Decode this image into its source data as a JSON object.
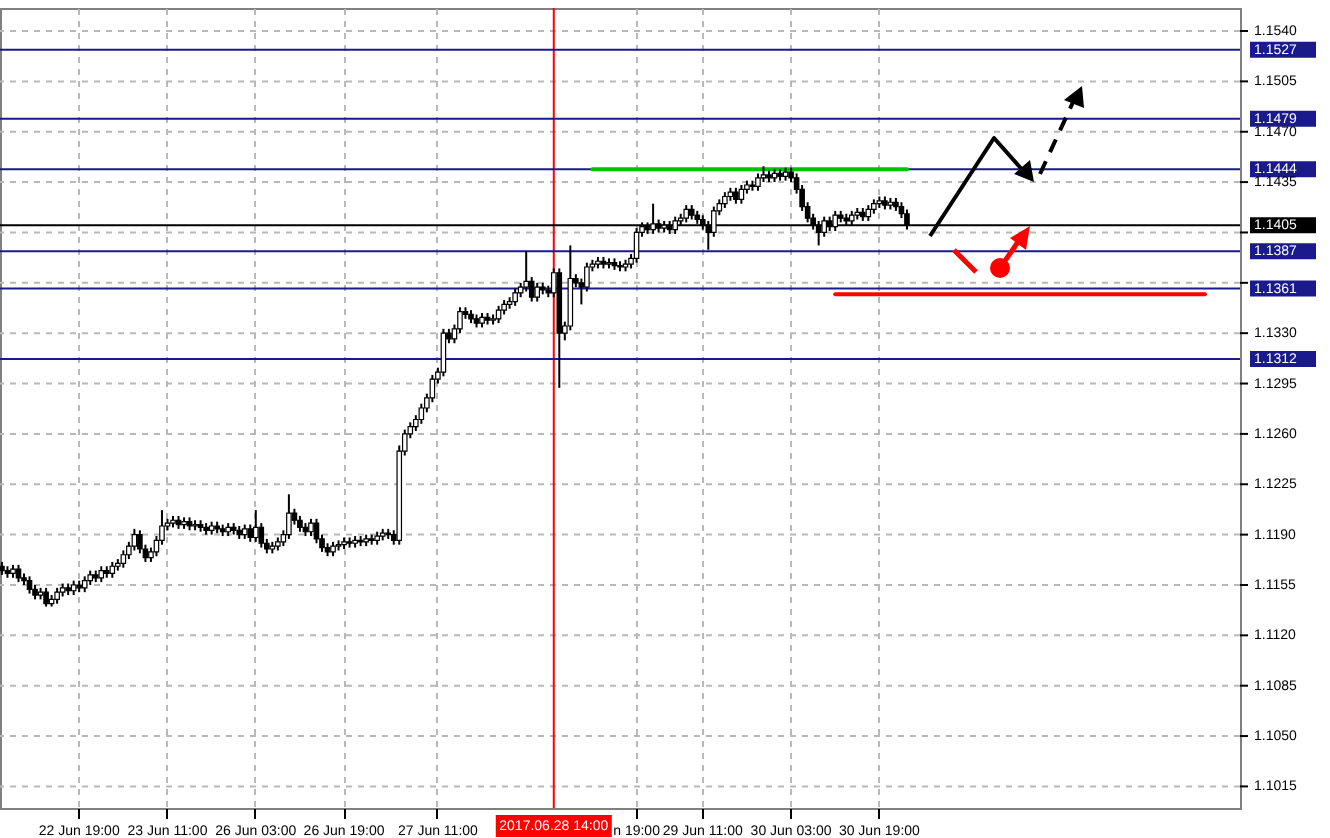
{
  "chart_data": {
    "type": "candlestick",
    "categories": [
      null,
      null,
      null,
      null,
      null,
      null,
      null,
      null,
      null,
      null,
      null,
      null,
      null,
      null,
      "22 Jun 19:00",
      null,
      null,
      null,
      null,
      null,
      null,
      null,
      null,
      null,
      null,
      null,
      null,
      null,
      null,
      null,
      "23 Jun 11:00",
      null,
      null,
      null,
      null,
      null,
      null,
      null,
      null,
      null,
      null,
      null,
      null,
      null,
      null,
      null,
      "26 Jun 03:00",
      null,
      null,
      null,
      null,
      null,
      null,
      null,
      null,
      null,
      null,
      null,
      null,
      null,
      null,
      null,
      "26 Jun 19:00",
      null,
      null,
      null,
      null,
      null,
      null,
      null,
      null,
      null,
      null,
      null,
      null,
      null,
      null,
      null,
      null,
      "27 Jun 11:00",
      null,
      null,
      null,
      null,
      null,
      null,
      null,
      null,
      null,
      null,
      null,
      null,
      null,
      null,
      null,
      null,
      null,
      null,
      null,
      null,
      "2017.06.28 14:00",
      null,
      null,
      null,
      null,
      null,
      null,
      null,
      null,
      null,
      null,
      null,
      null,
      null,
      null,
      "n 19:00",
      null,
      null,
      null,
      null,
      null,
      null,
      null,
      null,
      null,
      null,
      null,
      "29 Jun 11:00",
      null,
      null,
      null,
      null,
      null,
      null,
      null,
      null,
      null,
      null,
      null,
      null,
      null,
      null,
      null,
      "30 Jun 03:00",
      null,
      null,
      null,
      null,
      null,
      null,
      null,
      null,
      null,
      null,
      null,
      null,
      null,
      null,
      null,
      "30 Jun 19:00",
      null,
      null,
      null,
      null,
      null,
      null,
      null,
      null,
      null,
      null,
      null,
      null,
      null,
      null,
      null,
      null,
      null,
      null,
      null,
      null,
      null,
      null,
      null,
      null,
      null,
      null,
      null,
      null,
      null,
      null,
      null,
      null,
      null,
      null,
      null,
      null,
      null,
      null,
      null,
      null,
      null,
      null,
      null,
      null,
      null,
      null,
      null,
      null,
      null,
      null,
      null,
      null,
      null,
      null,
      null,
      null,
      null,
      null,
      null,
      null,
      null,
      null,
      null,
      null,
      null
    ],
    "ohlc": [
      [
        1.1168,
        1.1171,
        1.1162,
        1.1165
      ],
      [
        1.1165,
        1.1168,
        1.116,
        1.1163
      ],
      [
        1.1163,
        1.1169,
        1.116,
        1.1166
      ],
      [
        1.1166,
        1.1169,
        1.1157,
        1.116
      ],
      [
        1.116,
        1.1163,
        1.1155,
        1.1158
      ],
      [
        1.1158,
        1.1161,
        1.1149,
        1.1152
      ],
      [
        1.1152,
        1.1155,
        1.1145,
        1.1148
      ],
      [
        1.1148,
        1.1153,
        1.1145,
        1.115
      ],
      [
        1.115,
        1.1153,
        1.114,
        1.1142
      ],
      [
        1.1142,
        1.1148,
        1.114,
        1.1145
      ],
      [
        1.1145,
        1.1153,
        1.1142,
        1.115
      ],
      [
        1.115,
        1.1156,
        1.1147,
        1.1153
      ],
      [
        1.1153,
        1.1156,
        1.1148,
        1.1151
      ],
      [
        1.1151,
        1.1158,
        1.1148,
        1.1155
      ],
      [
        1.1155,
        1.1158,
        1.115,
        1.1153
      ],
      [
        1.1153,
        1.1161,
        1.115,
        1.1158
      ],
      [
        1.1158,
        1.1165,
        1.1155,
        1.1162
      ],
      [
        1.1162,
        1.1165,
        1.1157,
        1.116
      ],
      [
        1.116,
        1.1168,
        1.1157,
        1.1165
      ],
      [
        1.1165,
        1.1168,
        1.116,
        1.1163
      ],
      [
        1.1163,
        1.1171,
        1.116,
        1.1168
      ],
      [
        1.1168,
        1.1173,
        1.1165,
        1.117
      ],
      [
        1.117,
        1.1179,
        1.1167,
        1.1176
      ],
      [
        1.1176,
        1.1185,
        1.1173,
        1.1182
      ],
      [
        1.1182,
        1.1194,
        1.1179,
        1.119
      ],
      [
        1.119,
        1.1193,
        1.1177,
        1.118
      ],
      [
        1.118,
        1.1183,
        1.1171,
        1.1174
      ],
      [
        1.1174,
        1.1181,
        1.1171,
        1.1178
      ],
      [
        1.1178,
        1.1189,
        1.1175,
        1.1186
      ],
      [
        1.1186,
        1.1207,
        1.1183,
        1.1196
      ],
      [
        1.1196,
        1.1201,
        1.1193,
        1.1198
      ],
      [
        1.1198,
        1.1203,
        1.1195,
        1.12
      ],
      [
        1.12,
        1.1203,
        1.1194,
        1.1197
      ],
      [
        1.1197,
        1.1202,
        1.1194,
        1.1199
      ],
      [
        1.1199,
        1.1202,
        1.1193,
        1.1196
      ],
      [
        1.1196,
        1.12,
        1.1193,
        1.1197
      ],
      [
        1.1197,
        1.12,
        1.1192,
        1.1195
      ],
      [
        1.1195,
        1.1198,
        1.119,
        1.1193
      ],
      [
        1.1193,
        1.1199,
        1.119,
        1.1196
      ],
      [
        1.1196,
        1.1199,
        1.1191,
        1.1194
      ],
      [
        1.1194,
        1.1197,
        1.1189,
        1.1192
      ],
      [
        1.1192,
        1.1198,
        1.1189,
        1.1195
      ],
      [
        1.1195,
        1.1198,
        1.119,
        1.1193
      ],
      [
        1.1193,
        1.1196,
        1.1187,
        1.119
      ],
      [
        1.119,
        1.1197,
        1.1187,
        1.1194
      ],
      [
        1.1194,
        1.1197,
        1.1185,
        1.1188
      ],
      [
        1.1188,
        1.1207,
        1.1185,
        1.1195
      ],
      [
        1.1195,
        1.1198,
        1.1181,
        1.1184
      ],
      [
        1.1184,
        1.1187,
        1.1177,
        1.118
      ],
      [
        1.118,
        1.1185,
        1.1177,
        1.1182
      ],
      [
        1.1182,
        1.1188,
        1.1179,
        1.1185
      ],
      [
        1.1185,
        1.1193,
        1.1182,
        1.119
      ],
      [
        1.119,
        1.1218,
        1.1187,
        1.1205
      ],
      [
        1.1205,
        1.1208,
        1.1197,
        1.12
      ],
      [
        1.12,
        1.1203,
        1.1192,
        1.1195
      ],
      [
        1.1195,
        1.1198,
        1.1189,
        1.1192
      ],
      [
        1.1192,
        1.1201,
        1.1189,
        1.1198
      ],
      [
        1.1198,
        1.1201,
        1.1184,
        1.1187
      ],
      [
        1.1187,
        1.119,
        1.1178,
        1.1181
      ],
      [
        1.1181,
        1.1184,
        1.1175,
        1.1178
      ],
      [
        1.1178,
        1.1185,
        1.1175,
        1.1182
      ],
      [
        1.1182,
        1.1186,
        1.1179,
        1.1183
      ],
      [
        1.1183,
        1.1188,
        1.118,
        1.1185
      ],
      [
        1.1185,
        1.1188,
        1.1181,
        1.1184
      ],
      [
        1.1184,
        1.1189,
        1.1181,
        1.1186
      ],
      [
        1.1186,
        1.1189,
        1.1182,
        1.1185
      ],
      [
        1.1185,
        1.119,
        1.1182,
        1.1187
      ],
      [
        1.1187,
        1.119,
        1.1183,
        1.1186
      ],
      [
        1.1186,
        1.1192,
        1.1183,
        1.1189
      ],
      [
        1.1189,
        1.1194,
        1.1186,
        1.1191
      ],
      [
        1.1191,
        1.1194,
        1.1187,
        1.119
      ],
      [
        1.119,
        1.1193,
        1.1183,
        1.1186
      ],
      [
        1.1186,
        1.1252,
        1.1183,
        1.1248
      ],
      [
        1.1248,
        1.1263,
        1.1245,
        1.126
      ],
      [
        1.126,
        1.1268,
        1.1257,
        1.1265
      ],
      [
        1.1265,
        1.1273,
        1.1262,
        1.127
      ],
      [
        1.127,
        1.1281,
        1.1267,
        1.1278
      ],
      [
        1.1278,
        1.1288,
        1.1275,
        1.1285
      ],
      [
        1.1285,
        1.1301,
        1.1282,
        1.1298
      ],
      [
        1.1298,
        1.1306,
        1.1295,
        1.1303
      ],
      [
        1.1303,
        1.1333,
        1.13,
        1.133
      ],
      [
        1.133,
        1.1333,
        1.1323,
        1.1326
      ],
      [
        1.1326,
        1.1336,
        1.1323,
        1.1333
      ],
      [
        1.1333,
        1.1348,
        1.133,
        1.1345
      ],
      [
        1.1345,
        1.1348,
        1.134,
        1.1343
      ],
      [
        1.1343,
        1.1346,
        1.1337,
        1.134
      ],
      [
        1.134,
        1.1343,
        1.1334,
        1.1337
      ],
      [
        1.1337,
        1.1344,
        1.1334,
        1.1341
      ],
      [
        1.1341,
        1.1344,
        1.1336,
        1.1339
      ],
      [
        1.1339,
        1.1343,
        1.1336,
        1.134
      ],
      [
        1.134,
        1.1349,
        1.1337,
        1.1346
      ],
      [
        1.1346,
        1.1353,
        1.1343,
        1.135
      ],
      [
        1.135,
        1.1355,
        1.1347,
        1.1352
      ],
      [
        1.1352,
        1.1361,
        1.1349,
        1.1358
      ],
      [
        1.1358,
        1.1365,
        1.1355,
        1.1362
      ],
      [
        1.1362,
        1.1387,
        1.1359,
        1.1366
      ],
      [
        1.1366,
        1.1369,
        1.1352,
        1.1355
      ],
      [
        1.1355,
        1.1365,
        1.1352,
        1.1362
      ],
      [
        1.1362,
        1.1365,
        1.1357,
        1.136
      ],
      [
        1.136,
        1.1363,
        1.1355,
        1.1358
      ],
      [
        1.1358,
        1.1375,
        1.1355,
        1.1372
      ],
      [
        1.1372,
        1.1375,
        1.1292,
        1.133
      ],
      [
        1.133,
        1.1338,
        1.1325,
        1.1335
      ],
      [
        1.1335,
        1.1391,
        1.1332,
        1.1368
      ],
      [
        1.1368,
        1.1371,
        1.1362,
        1.1365
      ],
      [
        1.1365,
        1.1368,
        1.135,
        1.1362
      ],
      [
        1.1362,
        1.1379,
        1.1359,
        1.1376
      ],
      [
        1.1376,
        1.1381,
        1.1373,
        1.1378
      ],
      [
        1.1378,
        1.1383,
        1.1375,
        1.138
      ],
      [
        1.138,
        1.1383,
        1.1375,
        1.1378
      ],
      [
        1.1378,
        1.1382,
        1.1375,
        1.1379
      ],
      [
        1.1379,
        1.1382,
        1.1374,
        1.1377
      ],
      [
        1.1377,
        1.138,
        1.1373,
        1.1376
      ],
      [
        1.1376,
        1.1381,
        1.1373,
        1.1378
      ],
      [
        1.1378,
        1.1385,
        1.1375,
        1.1382
      ],
      [
        1.1382,
        1.1403,
        1.1379,
        1.14
      ],
      [
        1.14,
        1.1407,
        1.1397,
        1.1404
      ],
      [
        1.1404,
        1.1407,
        1.1399,
        1.1402
      ],
      [
        1.1402,
        1.142,
        1.1399,
        1.1406
      ],
      [
        1.1406,
        1.1409,
        1.14,
        1.1403
      ],
      [
        1.1403,
        1.1408,
        1.14,
        1.1405
      ],
      [
        1.1405,
        1.1408,
        1.1399,
        1.1402
      ],
      [
        1.1402,
        1.1411,
        1.1399,
        1.1408
      ],
      [
        1.1408,
        1.1413,
        1.1405,
        1.141
      ],
      [
        1.141,
        1.1419,
        1.1407,
        1.1416
      ],
      [
        1.1416,
        1.1419,
        1.1409,
        1.1412
      ],
      [
        1.1412,
        1.1415,
        1.1406,
        1.1409
      ],
      [
        1.1409,
        1.1412,
        1.1402,
        1.1405
      ],
      [
        1.1405,
        1.1408,
        1.1388,
        1.14
      ],
      [
        1.14,
        1.1418,
        1.1397,
        1.1415
      ],
      [
        1.1415,
        1.1423,
        1.1412,
        1.142
      ],
      [
        1.142,
        1.1428,
        1.1417,
        1.1425
      ],
      [
        1.1425,
        1.1431,
        1.1422,
        1.1428
      ],
      [
        1.1428,
        1.1431,
        1.142,
        1.1423
      ],
      [
        1.1423,
        1.1433,
        1.142,
        1.143
      ],
      [
        1.143,
        1.1436,
        1.1427,
        1.1433
      ],
      [
        1.1433,
        1.1436,
        1.1429,
        1.1432
      ],
      [
        1.1432,
        1.1441,
        1.1429,
        1.1438
      ],
      [
        1.1438,
        1.1446,
        1.1435,
        1.144
      ],
      [
        1.144,
        1.1443,
        1.1435,
        1.1438
      ],
      [
        1.1438,
        1.1444,
        1.1435,
        1.1441
      ],
      [
        1.1441,
        1.1444,
        1.1436,
        1.1439
      ],
      [
        1.1439,
        1.1445,
        1.1436,
        1.1442
      ],
      [
        1.1442,
        1.1445,
        1.1435,
        1.1438
      ],
      [
        1.1438,
        1.1441,
        1.1427,
        1.143
      ],
      [
        1.143,
        1.1433,
        1.1415,
        1.1418
      ],
      [
        1.1418,
        1.1421,
        1.1407,
        1.141
      ],
      [
        1.141,
        1.1413,
        1.1402,
        1.1405
      ],
      [
        1.1405,
        1.1408,
        1.1391,
        1.14
      ],
      [
        1.14,
        1.1411,
        1.1397,
        1.1408
      ],
      [
        1.1408,
        1.1411,
        1.1401,
        1.1404
      ],
      [
        1.1404,
        1.1415,
        1.1401,
        1.1412
      ],
      [
        1.1412,
        1.1415,
        1.1407,
        1.141
      ],
      [
        1.141,
        1.1413,
        1.1405,
        1.1408
      ],
      [
        1.1408,
        1.1415,
        1.1405,
        1.1412
      ],
      [
        1.1412,
        1.1417,
        1.1409,
        1.1414
      ],
      [
        1.1414,
        1.1417,
        1.1408,
        1.1411
      ],
      [
        1.1411,
        1.1419,
        1.1408,
        1.1416
      ],
      [
        1.1416,
        1.1423,
        1.1413,
        1.142
      ],
      [
        1.142,
        1.1425,
        1.1417,
        1.1422
      ],
      [
        1.1422,
        1.1425,
        1.1416,
        1.1419
      ],
      [
        1.1419,
        1.1424,
        1.1416,
        1.1421
      ],
      [
        1.1421,
        1.1424,
        1.1415,
        1.1418
      ],
      [
        1.1418,
        1.1421,
        1.141,
        1.1413
      ],
      [
        1.1413,
        1.1416,
        1.1402,
        1.1405
      ],
      null,
      null,
      null,
      null,
      null,
      null,
      null,
      null,
      null,
      null,
      null,
      null,
      null,
      null,
      null,
      null,
      null,
      null,
      null,
      null,
      null,
      null,
      null,
      null,
      null,
      null,
      null,
      null,
      null,
      null,
      null,
      null,
      null,
      null,
      null,
      null,
      null,
      null,
      null,
      null,
      null,
      null,
      null,
      null,
      null,
      null,
      null,
      null,
      null,
      null,
      null,
      null,
      null,
      null,
      null,
      null,
      null,
      null,
      null,
      null
    ],
    "series": [
      {
        "type": "line",
        "color": "#00c000",
        "values": [
          null,
          null,
          null,
          null,
          null,
          null,
          null,
          null,
          null,
          null,
          null,
          null,
          null,
          null,
          null,
          null,
          null,
          null,
          null,
          null,
          null,
          null,
          null,
          null,
          null,
          null,
          null,
          null,
          null,
          null,
          null,
          null,
          null,
          null,
          null,
          null,
          null,
          null,
          null,
          null,
          null,
          null,
          null,
          null,
          null,
          null,
          null,
          null,
          null,
          null,
          null,
          null,
          null,
          null,
          null,
          null,
          null,
          null,
          null,
          null,
          null,
          null,
          null,
          null,
          null,
          null,
          null,
          null,
          null,
          null,
          null,
          null,
          null,
          null,
          null,
          null,
          null,
          null,
          null,
          null,
          null,
          null,
          null,
          null,
          null,
          null,
          null,
          null,
          null,
          null,
          null,
          null,
          null,
          null,
          null,
          null,
          null,
          null,
          null,
          null,
          null,
          null,
          null,
          null,
          null,
          null,
          null,
          1.1444,
          1.1444,
          1.1444,
          1.1444,
          1.1444,
          1.1444,
          1.1444,
          1.1444,
          1.1444,
          1.1444,
          1.1444,
          1.1444,
          1.1444,
          1.1444,
          1.1444,
          1.1444,
          1.1444,
          1.1444,
          1.1444,
          1.1444,
          1.1444,
          1.1444,
          1.1444,
          1.1444,
          1.1444,
          1.1444,
          1.1444,
          1.1444,
          1.1444,
          1.1444,
          1.1444,
          1.1444,
          1.1444,
          1.1444,
          1.1444,
          1.1444,
          1.1444,
          1.1444,
          1.1444,
          1.1444,
          1.1444,
          1.1444,
          1.1444,
          1.1444,
          1.1444,
          1.1444,
          1.1444,
          1.1444,
          1.1444,
          1.1444,
          1.1444,
          1.1444,
          1.1444,
          1.1444,
          1.1444,
          1.1444,
          1.1444,
          1.1444,
          null,
          null,
          null,
          null,
          null,
          null,
          null,
          null,
          null,
          null,
          null,
          null,
          null,
          null,
          null,
          null,
          null,
          null,
          null,
          null,
          null,
          null,
          null,
          null,
          null,
          null,
          null,
          null,
          null,
          null,
          null,
          null,
          null,
          null,
          null,
          null,
          null,
          null,
          null,
          null,
          null,
          null,
          null,
          null,
          null,
          null,
          null,
          null,
          null,
          null,
          null,
          null,
          null,
          null,
          null,
          null,
          null,
          null,
          null,
          null
        ]
      },
      {
        "type": "line",
        "color": "#ff0000",
        "values": [
          null,
          null,
          null,
          null,
          null,
          null,
          null,
          null,
          null,
          null,
          null,
          null,
          null,
          null,
          null,
          null,
          null,
          null,
          null,
          null,
          null,
          null,
          null,
          null,
          null,
          null,
          null,
          null,
          null,
          null,
          null,
          null,
          null,
          null,
          null,
          null,
          null,
          null,
          null,
          null,
          null,
          null,
          null,
          null,
          null,
          null,
          null,
          null,
          null,
          null,
          null,
          null,
          null,
          null,
          null,
          null,
          null,
          null,
          null,
          null,
          null,
          null,
          null,
          null,
          null,
          null,
          null,
          null,
          null,
          null,
          null,
          null,
          null,
          null,
          null,
          null,
          null,
          null,
          null,
          null,
          null,
          null,
          null,
          null,
          null,
          null,
          null,
          null,
          null,
          null,
          null,
          null,
          null,
          null,
          null,
          null,
          null,
          null,
          null,
          null,
          null,
          null,
          null,
          null,
          null,
          null,
          null,
          null,
          null,
          null,
          null,
          null,
          null,
          null,
          null,
          null,
          null,
          null,
          null,
          null,
          null,
          null,
          null,
          null,
          null,
          null,
          null,
          null,
          null,
          null,
          null,
          null,
          null,
          null,
          null,
          null,
          null,
          null,
          null,
          null,
          null,
          null,
          null,
          null,
          null,
          null,
          null,
          null,
          null,
          null,
          null,
          1.1357,
          1.1357,
          1.1357,
          1.1357,
          1.1357,
          1.1357,
          1.1357,
          1.1357,
          1.1357,
          1.1357,
          1.1357,
          1.1357,
          1.1357,
          1.1357,
          1.1357,
          1.1357,
          1.1357,
          1.1357,
          1.1357,
          1.1357,
          1.1357,
          1.1357,
          1.1357,
          1.1357,
          1.1357,
          1.1357,
          1.1357,
          1.1357,
          1.1357,
          1.1357,
          1.1357,
          1.1357,
          1.1357,
          1.1357,
          1.1357,
          1.1357,
          1.1357,
          1.1357,
          1.1357,
          1.1357,
          1.1357,
          1.1357,
          1.1357,
          1.1357,
          1.1357,
          1.1357,
          1.1357,
          1.1357,
          1.1357,
          1.1357,
          1.1357,
          1.1357,
          1.1357,
          1.1357,
          1.1357,
          1.1357,
          1.1357,
          1.1357,
          1.1357,
          1.1357,
          1.1357,
          1.1357,
          1.1357,
          1.1357,
          1.1357,
          1.1357,
          1.1357,
          1.1357,
          null,
          null,
          null,
          null,
          null,
          null
        ]
      }
    ],
    "ylim": [
      1.1,
      1.1556
    ],
    "yticks": [
      {
        "value": 1.154,
        "label": "1.1540"
      },
      {
        "value": 1.1505,
        "label": "1.1505"
      },
      {
        "value": 1.147,
        "label": "1.1470"
      },
      {
        "value": 1.1435,
        "label": "1.1435"
      },
      {
        "value": 1.14,
        "label": null
      },
      {
        "value": 1.1365,
        "label": null
      },
      {
        "value": 1.133,
        "label": "1.1330"
      },
      {
        "value": 1.1295,
        "label": "1.1295"
      },
      {
        "value": 1.126,
        "label": "1.1260"
      },
      {
        "value": 1.1225,
        "label": "1.1225"
      },
      {
        "value": 1.119,
        "label": "1.1190"
      },
      {
        "value": 1.1155,
        "label": "1.1155"
      },
      {
        "value": 1.112,
        "label": "1.1120"
      },
      {
        "value": 1.1085,
        "label": "1.1085"
      },
      {
        "value": 1.105,
        "label": "1.1050"
      },
      {
        "value": 1.1015,
        "label": "1.1015"
      }
    ],
    "ref_lines": [
      {
        "axis": "y",
        "value": 1.1527,
        "label": "1.1527",
        "color": "#1a1a8c"
      },
      {
        "axis": "y",
        "value": 1.1479,
        "label": "1.1479",
        "color": "#1a1a8c"
      },
      {
        "axis": "y",
        "value": 1.1444,
        "label": "1.1444",
        "color": "#1a1a8c"
      },
      {
        "axis": "y",
        "value": 1.1405,
        "label": "1.1405",
        "color": "#000000"
      },
      {
        "axis": "y",
        "value": 1.1387,
        "label": "1.1387",
        "color": "#1a1a8c"
      },
      {
        "axis": "y",
        "value": 1.1361,
        "label": "1.1361",
        "color": "#1a1a8c"
      },
      {
        "axis": "y",
        "value": 1.1312,
        "label": "1.1312",
        "color": "#1a1a8c"
      },
      {
        "axis": "x",
        "value": "2017.06.28 14:00",
        "color": "#ff0000"
      }
    ],
    "grid": true
  }
}
